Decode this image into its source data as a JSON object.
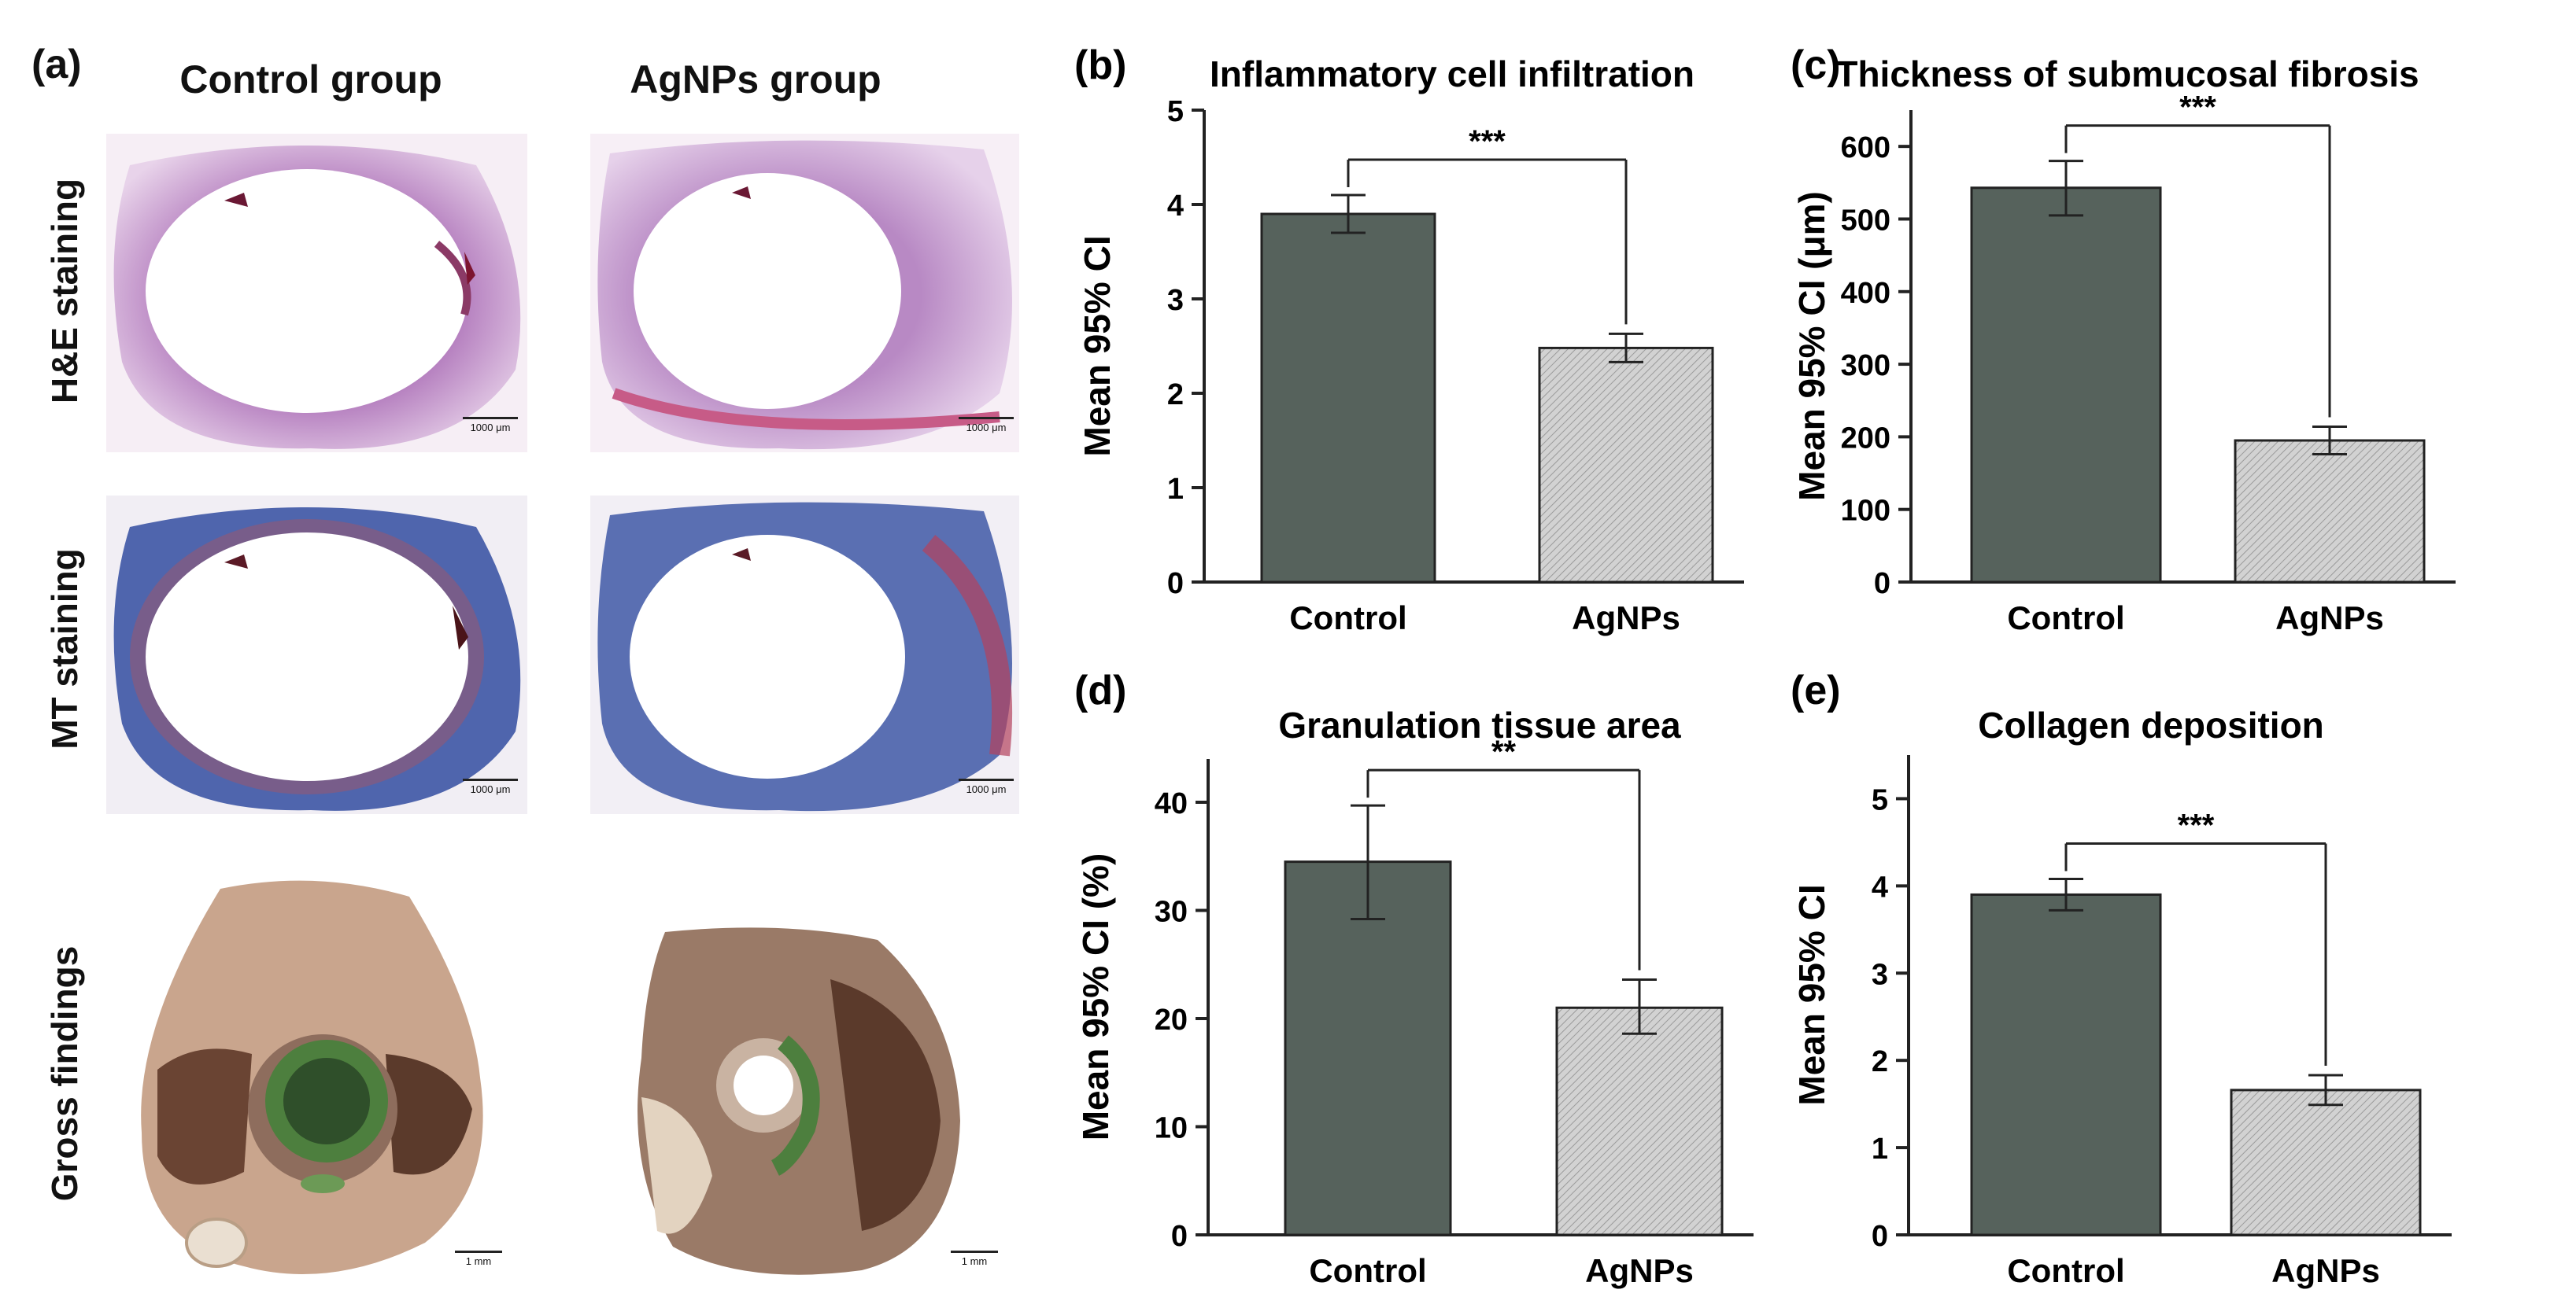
{
  "panel_a": {
    "letter": "(a)",
    "columns": [
      "Control group",
      "AgNPs group"
    ],
    "rows": [
      "H&E staining",
      "MT staining",
      "Gross findings"
    ],
    "scale_bars": {
      "micro": "1000 μm",
      "gross": "1 mm"
    },
    "colors": {
      "he_stain": "#c497c8",
      "mt_stain": "#5a6fb2",
      "tissue": "#c9a58d",
      "dark_tissue": "#5b3a2b",
      "green_deposit": "#4d7f3e"
    }
  },
  "chart_data": [
    {
      "panel": "(b)",
      "type": "bar",
      "title": "Inflammatory cell infiltration",
      "xlabel": "",
      "ylabel": "Mean 95% CI",
      "categories": [
        "Control",
        "AgNPs"
      ],
      "values": [
        3.9,
        2.48
      ],
      "ci_low": [
        3.7,
        2.33
      ],
      "ci_high": [
        4.1,
        2.63
      ],
      "ylim": [
        0,
        5
      ],
      "yticks": [
        0,
        1,
        2,
        3,
        4,
        5
      ],
      "significance": "***",
      "bar_colors": [
        "#56625c",
        "#cccccc"
      ],
      "bar_patterns": [
        "solid",
        "hatched"
      ],
      "grid": false,
      "legend": "none"
    },
    {
      "panel": "(c)",
      "type": "bar",
      "title": "Thickness of submucosal fibrosis",
      "xlabel": "",
      "ylabel": "Mean 95% CI (μm)",
      "categories": [
        "Control",
        "AgNPs"
      ],
      "values": [
        543,
        195
      ],
      "ci_low": [
        505,
        176
      ],
      "ci_high": [
        580,
        214
      ],
      "ylim": [
        0,
        650
      ],
      "yticks": [
        0,
        100,
        200,
        300,
        400,
        500,
        600
      ],
      "significance": "***",
      "bar_colors": [
        "#56625c",
        "#cccccc"
      ],
      "bar_patterns": [
        "solid",
        "hatched"
      ],
      "grid": false,
      "legend": "none"
    },
    {
      "panel": "(d)",
      "type": "bar",
      "title": "Granulation tissue area",
      "xlabel": "",
      "ylabel": "Mean 95% CI (%)",
      "categories": [
        "Control",
        "AgNPs"
      ],
      "values": [
        34.5,
        21.0
      ],
      "ci_low": [
        29.2,
        18.6
      ],
      "ci_high": [
        39.7,
        23.6
      ],
      "ylim": [
        0,
        44
      ],
      "yticks": [
        0,
        10,
        20,
        30,
        40
      ],
      "significance": "**",
      "bar_colors": [
        "#56625c",
        "#cccccc"
      ],
      "bar_patterns": [
        "solid",
        "hatched"
      ],
      "grid": false,
      "legend": "none"
    },
    {
      "panel": "(e)",
      "type": "bar",
      "title": "Collagen deposition",
      "xlabel": "",
      "ylabel": "Mean 95% CI",
      "categories": [
        "Control",
        "AgNPs"
      ],
      "values": [
        3.9,
        1.66
      ],
      "ci_low": [
        3.72,
        1.49
      ],
      "ci_high": [
        4.08,
        1.83
      ],
      "ylim": [
        0,
        5.5
      ],
      "yticks": [
        0,
        1,
        2,
        3,
        4,
        5
      ],
      "significance": "***",
      "bar_colors": [
        "#56625c",
        "#cccccc"
      ],
      "bar_patterns": [
        "solid",
        "hatched"
      ],
      "grid": false,
      "legend": "none"
    }
  ]
}
